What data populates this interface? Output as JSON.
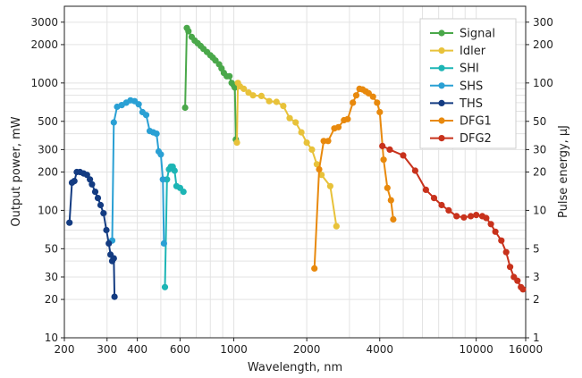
{
  "chart_data": {
    "type": "line",
    "xlabel": "Wavelength, nm",
    "ylabel": "Output power, mW",
    "y2label": "Pulse energy, µJ",
    "x_scale": "log",
    "y_scale": "log",
    "xlim": [
      200,
      16000
    ],
    "ylim": [
      10,
      4000
    ],
    "y2lim": [
      1,
      400
    ],
    "x_ticks": [
      {
        "value": 200,
        "label": "200"
      },
      {
        "value": 300,
        "label": "300"
      },
      {
        "value": 400,
        "label": "400"
      },
      {
        "value": 600,
        "label": "600"
      },
      {
        "value": 1000,
        "label": "1000"
      },
      {
        "value": 2000,
        "label": "2000"
      },
      {
        "value": 4000,
        "label": "4000"
      },
      {
        "value": 10000,
        "label": "10000"
      },
      {
        "value": 16000,
        "label": "16000"
      }
    ],
    "y_ticks": [
      {
        "value": 10,
        "label": "10"
      },
      {
        "value": 20,
        "label": "20"
      },
      {
        "value": 30,
        "label": "30"
      },
      {
        "value": 50,
        "label": "50"
      },
      {
        "value": 100,
        "label": "100"
      },
      {
        "value": 200,
        "label": "200"
      },
      {
        "value": 300,
        "label": "300"
      },
      {
        "value": 500,
        "label": "500"
      },
      {
        "value": 1000,
        "label": "1000"
      },
      {
        "value": 2000,
        "label": "2000"
      },
      {
        "value": 3000,
        "label": "3000"
      }
    ],
    "y2_ticks": [
      {
        "value": 1,
        "label": "1"
      },
      {
        "value": 2,
        "label": "2"
      },
      {
        "value": 3,
        "label": "3"
      },
      {
        "value": 5,
        "label": "5"
      },
      {
        "value": 10,
        "label": "10"
      },
      {
        "value": 20,
        "label": "20"
      },
      {
        "value": 30,
        "label": "30"
      },
      {
        "value": 50,
        "label": "50"
      },
      {
        "value": 100,
        "label": "100"
      },
      {
        "value": 200,
        "label": "200"
      },
      {
        "value": 300,
        "label": "300"
      }
    ],
    "grid": true,
    "legend_position": "top-right",
    "series": [
      {
        "name": "Signal",
        "color": "#4aa84a",
        "points": [
          [
            630,
            640
          ],
          [
            640,
            2700
          ],
          [
            650,
            2550
          ],
          [
            670,
            2300
          ],
          [
            690,
            2150
          ],
          [
            710,
            2050
          ],
          [
            730,
            1950
          ],
          [
            750,
            1850
          ],
          [
            775,
            1750
          ],
          [
            800,
            1650
          ],
          [
            820,
            1580
          ],
          [
            840,
            1500
          ],
          [
            870,
            1400
          ],
          [
            890,
            1300
          ],
          [
            910,
            1200
          ],
          [
            935,
            1130
          ],
          [
            960,
            1130
          ],
          [
            980,
            1000
          ],
          [
            1000,
            960
          ],
          [
            1010,
            920
          ],
          [
            1020,
            360
          ]
        ]
      },
      {
        "name": "Idler",
        "color": "#e8c23a",
        "points": [
          [
            1030,
            340
          ],
          [
            1040,
            1000
          ],
          [
            1060,
            940
          ],
          [
            1100,
            900
          ],
          [
            1150,
            840
          ],
          [
            1200,
            800
          ],
          [
            1300,
            790
          ],
          [
            1400,
            720
          ],
          [
            1500,
            710
          ],
          [
            1600,
            660
          ],
          [
            1700,
            530
          ],
          [
            1800,
            490
          ],
          [
            1900,
            410
          ],
          [
            2000,
            340
          ],
          [
            2100,
            300
          ],
          [
            2200,
            230
          ],
          [
            2300,
            190
          ],
          [
            2500,
            155
          ],
          [
            2650,
            75
          ]
        ]
      },
      {
        "name": "SHI",
        "color": "#1db5b5",
        "points": [
          [
            520,
            25
          ],
          [
            530,
            175
          ],
          [
            540,
            210
          ],
          [
            550,
            220
          ],
          [
            560,
            220
          ],
          [
            570,
            205
          ],
          [
            580,
            155
          ],
          [
            600,
            150
          ],
          [
            620,
            140
          ]
        ]
      },
      {
        "name": "SHS",
        "color": "#2aa0d4",
        "points": [
          [
            315,
            58
          ],
          [
            320,
            490
          ],
          [
            330,
            650
          ],
          [
            345,
            670
          ],
          [
            360,
            700
          ],
          [
            375,
            730
          ],
          [
            390,
            720
          ],
          [
            405,
            680
          ],
          [
            420,
            590
          ],
          [
            435,
            560
          ],
          [
            450,
            420
          ],
          [
            465,
            410
          ],
          [
            480,
            400
          ],
          [
            490,
            290
          ],
          [
            500,
            275
          ],
          [
            510,
            175
          ],
          [
            515,
            55
          ]
        ]
      },
      {
        "name": "THS",
        "color": "#143c82",
        "points": [
          [
            210,
            80
          ],
          [
            215,
            165
          ],
          [
            220,
            170
          ],
          [
            225,
            200
          ],
          [
            232,
            200
          ],
          [
            240,
            195
          ],
          [
            248,
            190
          ],
          [
            255,
            175
          ],
          [
            260,
            160
          ],
          [
            268,
            140
          ],
          [
            275,
            125
          ],
          [
            282,
            110
          ],
          [
            290,
            95
          ],
          [
            298,
            70
          ],
          [
            305,
            55
          ],
          [
            310,
            45
          ],
          [
            315,
            40
          ],
          [
            320,
            42
          ],
          [
            322,
            21
          ]
        ]
      },
      {
        "name": "DFG1",
        "color": "#e8890d",
        "points": [
          [
            2150,
            35
          ],
          [
            2250,
            210
          ],
          [
            2350,
            350
          ],
          [
            2450,
            350
          ],
          [
            2600,
            440
          ],
          [
            2700,
            450
          ],
          [
            2850,
            510
          ],
          [
            2950,
            520
          ],
          [
            3100,
            700
          ],
          [
            3200,
            800
          ],
          [
            3300,
            900
          ],
          [
            3400,
            890
          ],
          [
            3500,
            860
          ],
          [
            3600,
            830
          ],
          [
            3750,
            780
          ],
          [
            3900,
            700
          ],
          [
            4000,
            590
          ],
          [
            4150,
            250
          ],
          [
            4300,
            150
          ],
          [
            4450,
            120
          ],
          [
            4550,
            85
          ]
        ]
      },
      {
        "name": "DFG2",
        "color": "#c8321c",
        "points": [
          [
            4100,
            320
          ],
          [
            4400,
            300
          ],
          [
            5000,
            270
          ],
          [
            5600,
            205
          ],
          [
            6200,
            145
          ],
          [
            6700,
            125
          ],
          [
            7200,
            110
          ],
          [
            7700,
            100
          ],
          [
            8300,
            90
          ],
          [
            8900,
            88
          ],
          [
            9500,
            90
          ],
          [
            10000,
            92
          ],
          [
            10600,
            90
          ],
          [
            11000,
            87
          ],
          [
            11500,
            78
          ],
          [
            12000,
            68
          ],
          [
            12700,
            58
          ],
          [
            13300,
            47
          ],
          [
            13800,
            36
          ],
          [
            14300,
            30
          ],
          [
            14800,
            28
          ],
          [
            15300,
            25
          ],
          [
            15600,
            24
          ]
        ]
      }
    ]
  }
}
